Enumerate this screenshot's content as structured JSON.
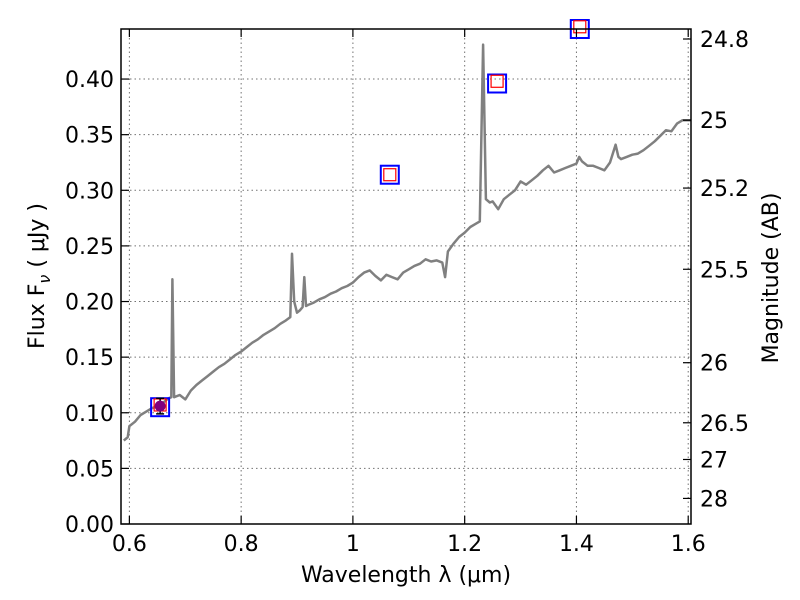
{
  "chart_data": {
    "type": "line",
    "xlabel": "Wavelength  λ (μm)",
    "ylabel_left": "Flux  F",
    "ylabel_left_sub": "ν",
    "ylabel_left_units": "  ( μJy )",
    "ylabel_right": "Magnitude (AB)",
    "xlim": [
      0.585,
      1.605
    ],
    "ylim": [
      0,
      0.445
    ],
    "x_ticks": [
      0.6,
      0.8,
      1.0,
      1.2,
      1.4,
      1.6
    ],
    "x_tick_labels": [
      "0.6",
      "0.8",
      "1",
      "1.2",
      "1.4",
      "1.6"
    ],
    "y_ticks": [
      0,
      0.05,
      0.1,
      0.15,
      0.2,
      0.25,
      0.3,
      0.35,
      0.4
    ],
    "y_tick_labels": [
      "0.00",
      "0.05",
      "0.10",
      "0.15",
      "0.20",
      "0.25",
      "0.30",
      "0.35",
      "0.40"
    ],
    "right_ticks": [
      {
        "label": "24.8",
        "flux": 0.436
      },
      {
        "label": "25",
        "flux": 0.363
      },
      {
        "label": "25.2",
        "flux": 0.302
      },
      {
        "label": "25.5",
        "flux": 0.229
      },
      {
        "label": "26",
        "flux": 0.145
      },
      {
        "label": "26.5",
        "flux": 0.091
      },
      {
        "label": "27",
        "flux": 0.058
      },
      {
        "label": "28",
        "flux": 0.023
      }
    ],
    "grid": true,
    "series": [
      {
        "kind": "spectrum",
        "color": "#808080",
        "points": [
          [
            0.59,
            0.075
          ],
          [
            0.597,
            0.078
          ],
          [
            0.6,
            0.088
          ],
          [
            0.61,
            0.092
          ],
          [
            0.62,
            0.098
          ],
          [
            0.63,
            0.101
          ],
          [
            0.64,
            0.104
          ],
          [
            0.65,
            0.106
          ],
          [
            0.66,
            0.109
          ],
          [
            0.67,
            0.113
          ],
          [
            0.675,
            0.114
          ],
          [
            0.677,
            0.22
          ],
          [
            0.68,
            0.114
          ],
          [
            0.69,
            0.116
          ],
          [
            0.7,
            0.112
          ],
          [
            0.71,
            0.12
          ],
          [
            0.72,
            0.125
          ],
          [
            0.73,
            0.129
          ],
          [
            0.74,
            0.133
          ],
          [
            0.75,
            0.137
          ],
          [
            0.76,
            0.141
          ],
          [
            0.77,
            0.144
          ],
          [
            0.78,
            0.148
          ],
          [
            0.79,
            0.152
          ],
          [
            0.8,
            0.155
          ],
          [
            0.81,
            0.159
          ],
          [
            0.82,
            0.163
          ],
          [
            0.83,
            0.166
          ],
          [
            0.84,
            0.17
          ],
          [
            0.85,
            0.173
          ],
          [
            0.86,
            0.176
          ],
          [
            0.87,
            0.18
          ],
          [
            0.88,
            0.183
          ],
          [
            0.888,
            0.186
          ],
          [
            0.891,
            0.243
          ],
          [
            0.895,
            0.2
          ],
          [
            0.9,
            0.19
          ],
          [
            0.905,
            0.192
          ],
          [
            0.91,
            0.195
          ],
          [
            0.913,
            0.222
          ],
          [
            0.916,
            0.196
          ],
          [
            0.92,
            0.197
          ],
          [
            0.93,
            0.199
          ],
          [
            0.94,
            0.202
          ],
          [
            0.95,
            0.204
          ],
          [
            0.96,
            0.207
          ],
          [
            0.97,
            0.209
          ],
          [
            0.98,
            0.212
          ],
          [
            0.99,
            0.214
          ],
          [
            1.0,
            0.217
          ],
          [
            1.01,
            0.222
          ],
          [
            1.02,
            0.226
          ],
          [
            1.03,
            0.228
          ],
          [
            1.04,
            0.223
          ],
          [
            1.05,
            0.219
          ],
          [
            1.06,
            0.224
          ],
          [
            1.07,
            0.222
          ],
          [
            1.08,
            0.22
          ],
          [
            1.09,
            0.226
          ],
          [
            1.1,
            0.229
          ],
          [
            1.11,
            0.232
          ],
          [
            1.12,
            0.234
          ],
          [
            1.13,
            0.238
          ],
          [
            1.14,
            0.236
          ],
          [
            1.15,
            0.237
          ],
          [
            1.16,
            0.235
          ],
          [
            1.165,
            0.222
          ],
          [
            1.17,
            0.245
          ],
          [
            1.18,
            0.252
          ],
          [
            1.19,
            0.258
          ],
          [
            1.2,
            0.262
          ],
          [
            1.21,
            0.267
          ],
          [
            1.22,
            0.27
          ],
          [
            1.227,
            0.272
          ],
          [
            1.233,
            0.431
          ],
          [
            1.238,
            0.292
          ],
          [
            1.245,
            0.289
          ],
          [
            1.25,
            0.29
          ],
          [
            1.26,
            0.283
          ],
          [
            1.27,
            0.292
          ],
          [
            1.28,
            0.296
          ],
          [
            1.29,
            0.3
          ],
          [
            1.3,
            0.308
          ],
          [
            1.31,
            0.305
          ],
          [
            1.32,
            0.309
          ],
          [
            1.33,
            0.313
          ],
          [
            1.34,
            0.318
          ],
          [
            1.35,
            0.322
          ],
          [
            1.36,
            0.316
          ],
          [
            1.37,
            0.318
          ],
          [
            1.38,
            0.32
          ],
          [
            1.39,
            0.322
          ],
          [
            1.4,
            0.324
          ],
          [
            1.405,
            0.33
          ],
          [
            1.41,
            0.326
          ],
          [
            1.42,
            0.322
          ],
          [
            1.43,
            0.322
          ],
          [
            1.44,
            0.32
          ],
          [
            1.45,
            0.318
          ],
          [
            1.46,
            0.325
          ],
          [
            1.47,
            0.341
          ],
          [
            1.475,
            0.33
          ],
          [
            1.48,
            0.328
          ],
          [
            1.49,
            0.33
          ],
          [
            1.5,
            0.332
          ],
          [
            1.51,
            0.333
          ],
          [
            1.52,
            0.336
          ],
          [
            1.53,
            0.34
          ],
          [
            1.54,
            0.344
          ],
          [
            1.55,
            0.349
          ],
          [
            1.56,
            0.354
          ],
          [
            1.57,
            0.353
          ],
          [
            1.58,
            0.36
          ],
          [
            1.59,
            0.363
          ],
          [
            1.605,
            0.363
          ]
        ]
      },
      {
        "kind": "model_photometry",
        "marker": "square",
        "color": "#0000ff",
        "points": [
          [
            0.655,
            0.105
          ],
          [
            1.066,
            0.314
          ],
          [
            1.258,
            0.396
          ],
          [
            1.406,
            0.445
          ]
        ]
      },
      {
        "kind": "observed_photometry",
        "marker": "square-small",
        "color": "#ff0000",
        "points": [
          [
            0.655,
            0.107
          ],
          [
            1.066,
            0.314
          ],
          [
            1.258,
            0.398
          ],
          [
            1.406,
            0.447
          ]
        ]
      },
      {
        "kind": "detection",
        "marker": "circle",
        "color": "#800080",
        "points": [
          [
            0.655,
            0.106
          ]
        ],
        "error": [
          0.007
        ]
      }
    ]
  }
}
